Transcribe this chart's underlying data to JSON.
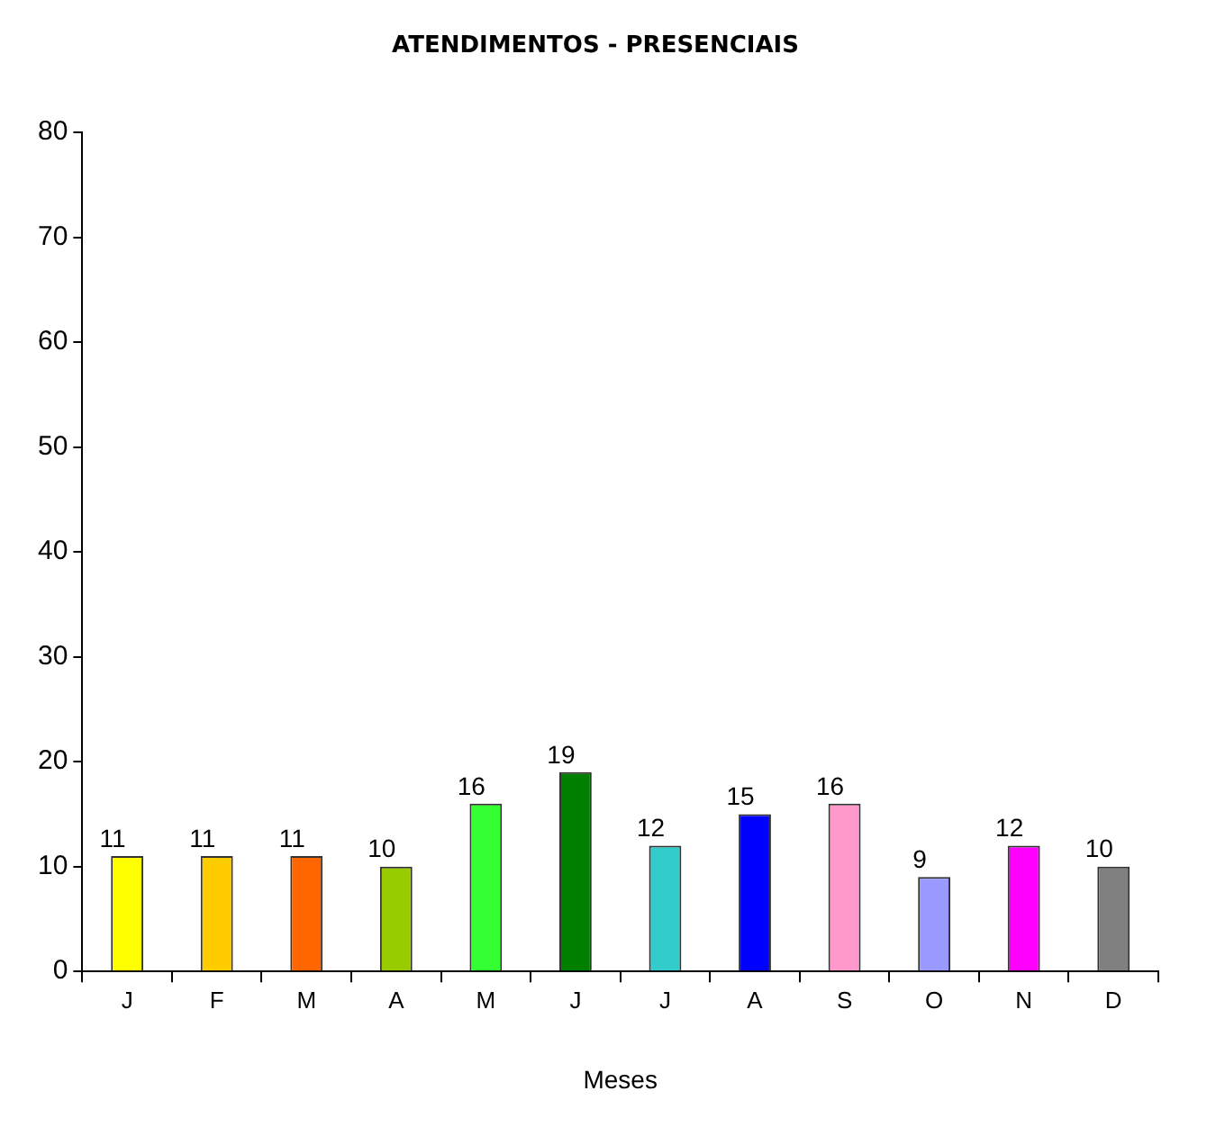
{
  "chart_data": {
    "type": "bar",
    "title": "ATENDIMENTOS - PRESENCIAIS",
    "xlabel": "Meses",
    "categories": [
      "J",
      "F",
      "M",
      "A",
      "M",
      "J",
      "J",
      "A",
      "S",
      "O",
      "N",
      "D"
    ],
    "values": [
      11,
      11,
      11,
      10,
      16,
      19,
      12,
      15,
      16,
      9,
      12,
      10
    ],
    "colors": [
      "#ffff00",
      "#ffcc00",
      "#ff6600",
      "#99cc00",
      "#33ff33",
      "#008000",
      "#33cccc",
      "#0000ff",
      "#ff99cc",
      "#9999ff",
      "#ff00ff",
      "#808080"
    ],
    "ylim": [
      0,
      80
    ],
    "yticks": [
      0,
      10,
      20,
      30,
      40,
      50,
      60,
      70,
      80
    ],
    "grid": false,
    "legend": false,
    "data_labels": true
  }
}
